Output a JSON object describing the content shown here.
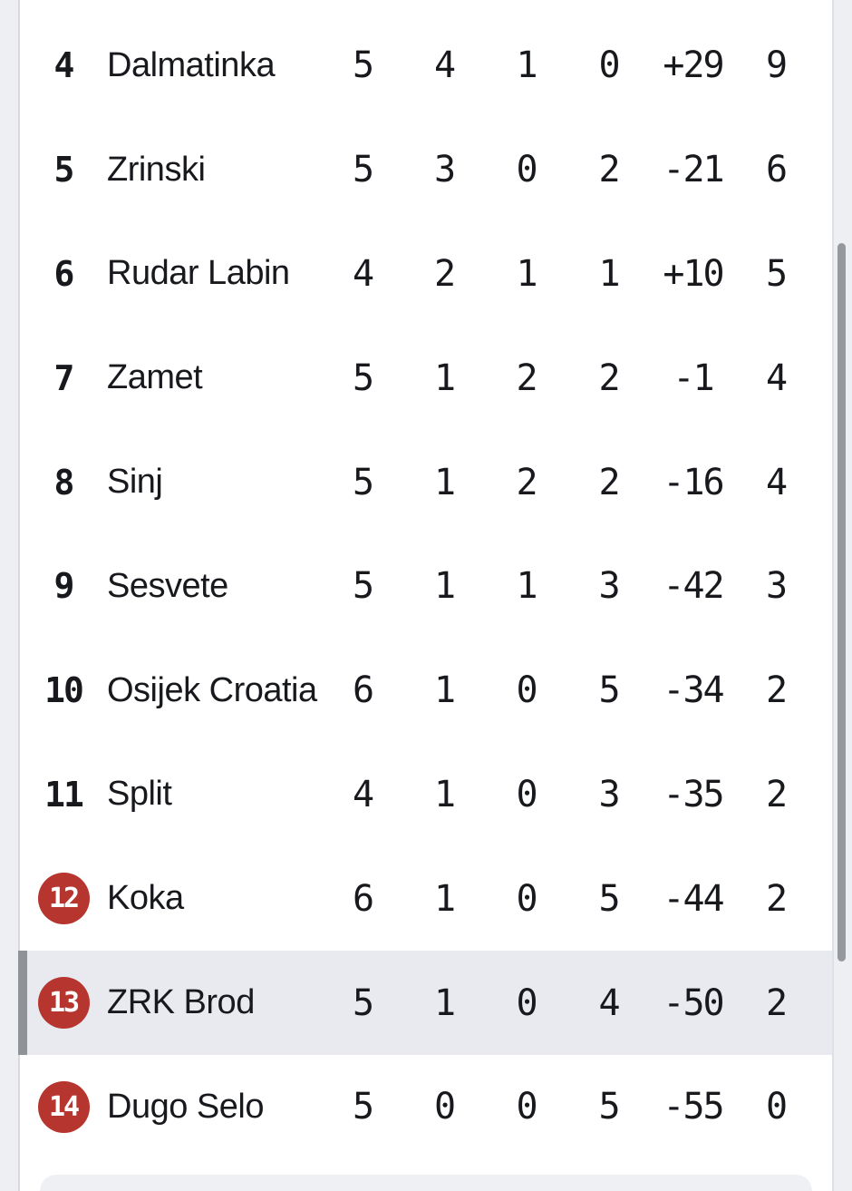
{
  "app": {
    "view": "league-standings-table",
    "visible_rank_range": "4-14"
  },
  "colors": {
    "page_background": "#edeff3",
    "card_background": "#ffffff",
    "highlight_row": "#e8eaf0",
    "relegation_badge_red": "#b7352f",
    "badge_text": "#ffffff",
    "text": "#17191d",
    "scrollbar": "#95989d",
    "row_indicator_bar": "#8f9297",
    "next_section_background": "#eef0f4"
  },
  "table": {
    "columns": [
      "rank",
      "team",
      "played",
      "wins",
      "draws",
      "losses",
      "diff",
      "points"
    ],
    "rows": [
      {
        "rank": "4",
        "team": "Dalmatinka",
        "played": "5",
        "wins": "4",
        "draws": "1",
        "losses": "0",
        "diff": "+29",
        "points": "9",
        "badge": false,
        "highlighted": false
      },
      {
        "rank": "5",
        "team": "Zrinski",
        "played": "5",
        "wins": "3",
        "draws": "0",
        "losses": "2",
        "diff": "-21",
        "points": "6",
        "badge": false,
        "highlighted": false
      },
      {
        "rank": "6",
        "team": "Rudar Labin",
        "played": "4",
        "wins": "2",
        "draws": "1",
        "losses": "1",
        "diff": "+10",
        "points": "5",
        "badge": false,
        "highlighted": false
      },
      {
        "rank": "7",
        "team": "Zamet",
        "played": "5",
        "wins": "1",
        "draws": "2",
        "losses": "2",
        "diff": "-1",
        "points": "4",
        "badge": false,
        "highlighted": false
      },
      {
        "rank": "8",
        "team": "Sinj",
        "played": "5",
        "wins": "1",
        "draws": "2",
        "losses": "2",
        "diff": "-16",
        "points": "4",
        "badge": false,
        "highlighted": false
      },
      {
        "rank": "9",
        "team": "Sesvete",
        "played": "5",
        "wins": "1",
        "draws": "1",
        "losses": "3",
        "diff": "-42",
        "points": "3",
        "badge": false,
        "highlighted": false
      },
      {
        "rank": "10",
        "team": "Osijek Croatia",
        "played": "6",
        "wins": "1",
        "draws": "0",
        "losses": "5",
        "diff": "-34",
        "points": "2",
        "badge": false,
        "highlighted": false
      },
      {
        "rank": "11",
        "team": "Split",
        "played": "4",
        "wins": "1",
        "draws": "0",
        "losses": "3",
        "diff": "-35",
        "points": "2",
        "badge": false,
        "highlighted": false
      },
      {
        "rank": "12",
        "team": "Koka",
        "played": "6",
        "wins": "1",
        "draws": "0",
        "losses": "5",
        "diff": "-44",
        "points": "2",
        "badge": true,
        "highlighted": false
      },
      {
        "rank": "13",
        "team": "ZRK Brod",
        "played": "5",
        "wins": "1",
        "draws": "0",
        "losses": "4",
        "diff": "-50",
        "points": "2",
        "badge": true,
        "highlighted": true
      },
      {
        "rank": "14",
        "team": "Dugo Selo",
        "played": "5",
        "wins": "0",
        "draws": "0",
        "losses": "5",
        "diff": "-55",
        "points": "0",
        "badge": true,
        "highlighted": false
      }
    ]
  }
}
